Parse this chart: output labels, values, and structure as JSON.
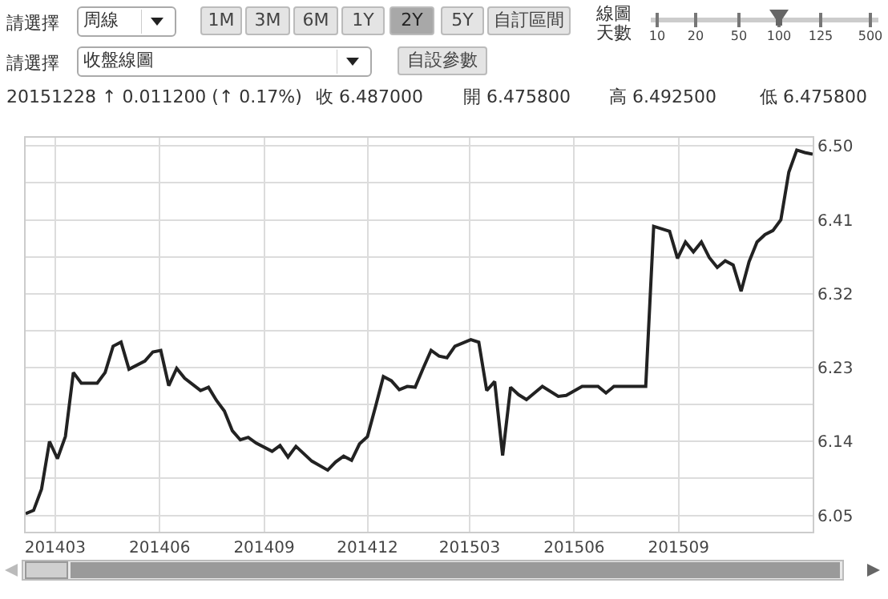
{
  "chart_data": {
    "type": "line",
    "annotations": [
      "請選擇",
      "周線",
      "1M",
      "3M",
      "6M",
      "1Y",
      "2Y",
      "5Y",
      "自訂區間",
      "線圖天數",
      "10",
      "20",
      "50",
      "100",
      "125",
      "500",
      "請選擇",
      "收盤線圖",
      "自設參數",
      "20151228 ↑ 0.011200 (↑ 0.17%)",
      "收 6.487000",
      "開 6.475800",
      "高 6.492500",
      "低 6.475800"
    ],
    "x": [
      "2014-02-03",
      "2014-02-10",
      "2014-02-17",
      "2014-02-24",
      "2014-03-03",
      "2014-03-10",
      "2014-03-17",
      "2014-03-24",
      "2014-04-07",
      "2014-04-14",
      "2014-04-21",
      "2014-04-28",
      "2014-05-05",
      "2014-05-19",
      "2014-05-26",
      "2014-06-02",
      "2014-06-09",
      "2014-06-16",
      "2014-06-23",
      "2014-07-07",
      "2014-07-14",
      "2014-07-21",
      "2014-07-28",
      "2014-08-04",
      "2014-08-11",
      "2014-08-18",
      "2014-08-25",
      "2014-09-08",
      "2014-09-15",
      "2014-09-22",
      "2014-09-29",
      "2014-10-13",
      "2014-10-27",
      "2014-11-03",
      "2014-11-10",
      "2014-11-17",
      "2014-11-24",
      "2014-12-01",
      "2014-12-08",
      "2014-12-15",
      "2014-12-22",
      "2014-12-29",
      "2015-01-05",
      "2015-01-12",
      "2015-01-19",
      "2015-01-26",
      "2015-02-02",
      "2015-02-09",
      "2015-02-16",
      "2015-03-02",
      "2015-03-09",
      "2015-03-16",
      "2015-03-23",
      "2015-03-30",
      "2015-04-06",
      "2015-04-13",
      "2015-04-20",
      "2015-05-04",
      "2015-05-18",
      "2015-05-25",
      "2015-06-08",
      "2015-06-22",
      "2015-06-29",
      "2015-07-06",
      "2015-08-03",
      "2015-08-10",
      "2015-08-24",
      "2015-08-31",
      "2015-09-07",
      "2015-09-14",
      "2015-09-21",
      "2015-09-28",
      "2015-10-05",
      "2015-10-12",
      "2015-10-19",
      "2015-10-26",
      "2015-11-02",
      "2015-11-09",
      "2015-11-16",
      "2015-11-23",
      "2015-11-30",
      "2015-12-07",
      "2015-12-14",
      "2015-12-21",
      "2015-12-28"
    ],
    "series": [
      {
        "color": "#222222",
        "values": [
          6.052,
          6.056,
          6.082,
          6.14,
          6.119,
          6.146,
          6.224,
          6.211,
          6.211,
          6.224,
          6.256,
          6.261,
          6.228,
          6.238,
          6.249,
          6.251,
          6.208,
          6.229,
          6.217,
          6.202,
          6.206,
          6.19,
          6.177,
          6.153,
          6.142,
          6.145,
          6.138,
          6.128,
          6.135,
          6.121,
          6.134,
          6.116,
          6.105,
          6.115,
          6.122,
          6.117,
          6.137,
          6.146,
          6.182,
          6.219,
          6.214,
          6.203,
          6.207,
          6.206,
          6.229,
          6.251,
          6.244,
          6.242,
          6.256,
          6.264,
          6.261,
          6.202,
          6.213,
          6.123,
          6.206,
          6.197,
          6.191,
          6.207,
          6.195,
          6.196,
          6.207,
          6.207,
          6.199,
          6.207,
          6.207,
          6.402,
          6.396,
          6.363,
          6.383,
          6.371,
          6.383,
          6.364,
          6.352,
          6.36,
          6.355,
          6.323,
          6.359,
          6.383,
          6.392,
          6.397,
          6.41,
          6.468,
          6.495,
          6.492,
          6.49
        ]
      }
    ],
    "line_style": "solid",
    "xlim": [
      "2014-02-03",
      "2015-12-28"
    ],
    "xticks": [
      {
        "value": "2014-03-01",
        "label": "201403"
      },
      {
        "value": "2014-06-01",
        "label": "201406"
      },
      {
        "value": "2014-09-01",
        "label": "201409"
      },
      {
        "value": "2014-12-01",
        "label": "201412"
      },
      {
        "value": "2015-03-01",
        "label": "201503"
      },
      {
        "value": "2015-06-01",
        "label": "201506"
      },
      {
        "value": "2015-09-01",
        "label": "201509"
      }
    ],
    "ylim": [
      6.03,
      6.51
    ],
    "yticks": [
      6.05,
      {
        "value": 6.095,
        "label": null
      },
      6.14,
      {
        "value": 6.185,
        "label": null
      },
      6.23,
      {
        "value": 6.275,
        "label": null
      },
      6.32,
      {
        "value": 6.365,
        "label": null
      },
      6.41,
      {
        "value": 6.455,
        "label": null
      },
      {
        "value": 6.5,
        "label": "6.50"
      }
    ],
    "grid": true
  }
}
